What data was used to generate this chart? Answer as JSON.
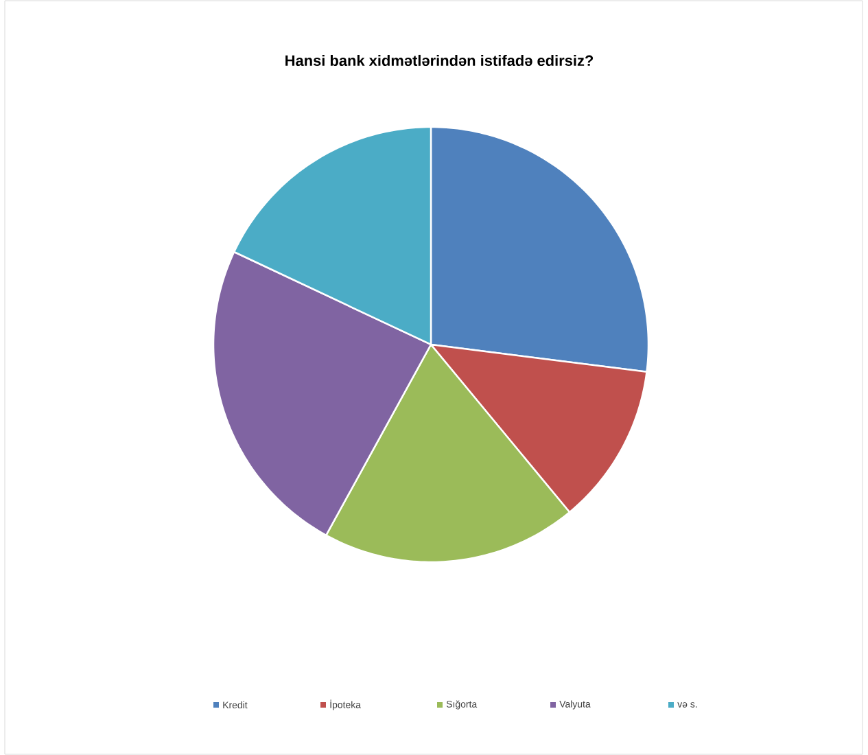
{
  "chart_data": {
    "type": "pie",
    "title": "Hansi bank xidmətlərindən istifadə edirsiz?",
    "categories": [
      "Kredit",
      "İpoteka",
      "Sığorta",
      "Valyuta",
      "və s."
    ],
    "values": [
      27,
      12,
      19,
      24,
      18
    ],
    "colors": [
      "#4f81bd",
      "#c0504d",
      "#9bbb59",
      "#8064a2",
      "#4bacc6"
    ],
    "legend": "bottom"
  }
}
